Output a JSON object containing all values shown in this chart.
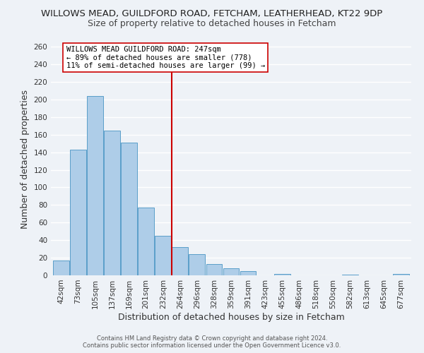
{
  "title": "WILLOWS MEAD, GUILDFORD ROAD, FETCHAM, LEATHERHEAD, KT22 9DP",
  "subtitle": "Size of property relative to detached houses in Fetcham",
  "xlabel": "Distribution of detached houses by size in Fetcham",
  "ylabel": "Number of detached properties",
  "footer_line1": "Contains HM Land Registry data © Crown copyright and database right 2024.",
  "footer_line2": "Contains public sector information licensed under the Open Government Licence v3.0.",
  "bar_labels": [
    "42sqm",
    "73sqm",
    "105sqm",
    "137sqm",
    "169sqm",
    "201sqm",
    "232sqm",
    "264sqm",
    "296sqm",
    "328sqm",
    "359sqm",
    "391sqm",
    "423sqm",
    "455sqm",
    "486sqm",
    "518sqm",
    "550sqm",
    "582sqm",
    "613sqm",
    "645sqm",
    "677sqm"
  ],
  "bar_values": [
    17,
    143,
    204,
    165,
    151,
    77,
    45,
    32,
    24,
    13,
    8,
    5,
    0,
    2,
    0,
    0,
    0,
    1,
    0,
    0,
    2
  ],
  "bar_color": "#aecde8",
  "bar_edge_color": "#5a9ec9",
  "vline_x": 6.5,
  "vline_color": "#cc0000",
  "annotation_title": "WILLOWS MEAD GUILDFORD ROAD: 247sqm",
  "annotation_line2": "← 89% of detached houses are smaller (778)",
  "annotation_line3": "11% of semi-detached houses are larger (99) →",
  "annotation_box_color": "#ffffff",
  "annotation_box_edge": "#cc0000",
  "ylim": [
    0,
    265
  ],
  "yticks": [
    0,
    20,
    40,
    60,
    80,
    100,
    120,
    140,
    160,
    180,
    200,
    220,
    240,
    260
  ],
  "background_color": "#eef2f7",
  "grid_color": "#ffffff",
  "title_fontsize": 9.5,
  "subtitle_fontsize": 9.0,
  "axis_label_fontsize": 9.0,
  "tick_fontsize": 7.5,
  "annotation_fontsize": 7.5,
  "footer_fontsize": 6.0
}
